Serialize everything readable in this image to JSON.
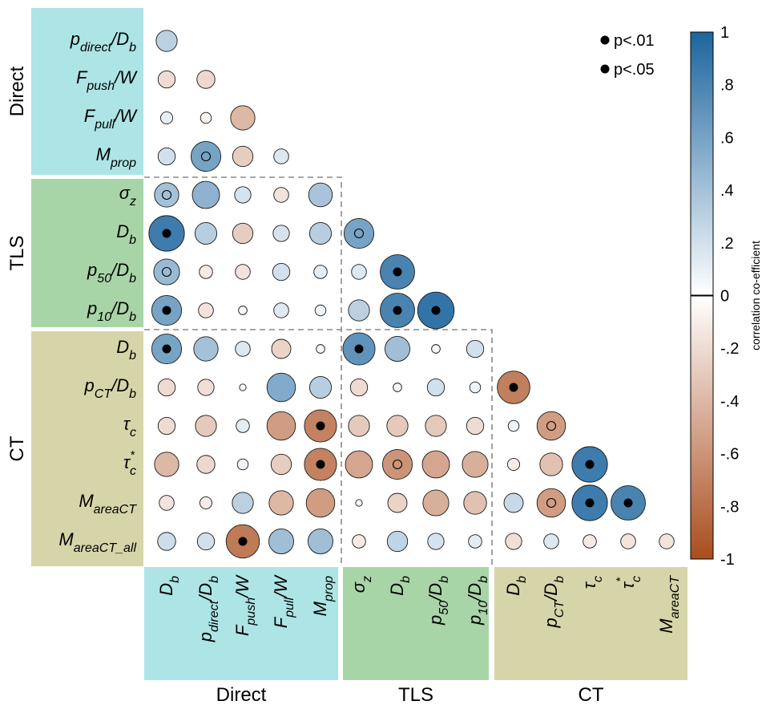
{
  "chart_data": {
    "type": "heatmap",
    "title": "",
    "matrix_style": "lower-triangle circle correlation plot",
    "colorbar": {
      "label": "correlation co-efficient",
      "range": [
        -1,
        1
      ],
      "tick_labels": [
        "1",
        ".8",
        ".6",
        ".4",
        ".2",
        "0",
        "-.2",
        "-.4",
        "-.6",
        "-.8",
        "-1"
      ],
      "tick_values": [
        1,
        0.8,
        0.6,
        0.4,
        0.2,
        0,
        -0.2,
        -0.4,
        -0.6,
        -0.8,
        -1
      ],
      "positive_color": "#1c659e",
      "negative_color": "#a94d1e",
      "zero_color": "#ffffff"
    },
    "legend": {
      "position": "top-right",
      "items": [
        {
          "label": "p<.01",
          "marker": "filled-dot"
        },
        {
          "label": "p<.05",
          "marker": "filled-dot"
        }
      ]
    },
    "groups": [
      {
        "name": "Direct",
        "color": "#ade4e6"
      },
      {
        "name": "TLS",
        "color": "#a8d5a8"
      },
      {
        "name": "CT",
        "color": "#d6d5a9"
      }
    ],
    "row_labels": [
      {
        "base": "p",
        "sub": "direct",
        "tail": "/D",
        "tail_sub": "b",
        "group": "Direct"
      },
      {
        "base": "F",
        "sub": "push",
        "tail": "/W",
        "tail_sub": "",
        "group": "Direct"
      },
      {
        "base": "F",
        "sub": "pull",
        "tail": "/W",
        "tail_sub": "",
        "group": "Direct"
      },
      {
        "base": "M",
        "sub": "prop",
        "tail": "",
        "tail_sub": "",
        "group": "Direct"
      },
      {
        "base": "σ",
        "sub": "z",
        "tail": "",
        "tail_sub": "",
        "group": "TLS"
      },
      {
        "base": "D",
        "sub": "b",
        "tail": "",
        "tail_sub": "",
        "group": "TLS"
      },
      {
        "base": "p",
        "sub": "50",
        "tail": "/D",
        "tail_sub": "b",
        "group": "TLS"
      },
      {
        "base": "p",
        "sub": "10",
        "tail": "/D",
        "tail_sub": "b",
        "group": "TLS"
      },
      {
        "base": "D",
        "sub": "b",
        "tail": "",
        "tail_sub": "",
        "group": "CT"
      },
      {
        "base": "p",
        "sub": "CT",
        "tail": "/D",
        "tail_sub": "b",
        "group": "CT"
      },
      {
        "base": "τ",
        "sub": "c",
        "tail": "",
        "tail_sub": "",
        "group": "CT"
      },
      {
        "base": "τ",
        "sub": "c",
        "sup": "*",
        "tail": "",
        "tail_sub": "",
        "group": "CT"
      },
      {
        "base": "M",
        "sub": "areaCT",
        "tail": "",
        "tail_sub": "",
        "group": "CT"
      },
      {
        "base": "M",
        "sub": "areaCT_all",
        "tail": "",
        "tail_sub": "",
        "group": "CT"
      }
    ],
    "col_labels": [
      {
        "base": "D",
        "sub": "b",
        "tail": "",
        "tail_sub": "",
        "group": "Direct"
      },
      {
        "base": "p",
        "sub": "direct",
        "tail": "/D",
        "tail_sub": "b",
        "group": "Direct"
      },
      {
        "base": "F",
        "sub": "push",
        "tail": "/W",
        "tail_sub": "",
        "group": "Direct"
      },
      {
        "base": "F",
        "sub": "pull",
        "tail": "/W",
        "tail_sub": "",
        "group": "Direct"
      },
      {
        "base": "M",
        "sub": "prop",
        "tail": "",
        "tail_sub": "",
        "group": "Direct"
      },
      {
        "base": "σ",
        "sub": "z",
        "tail": "",
        "tail_sub": "",
        "group": "TLS"
      },
      {
        "base": "D",
        "sub": "b",
        "tail": "",
        "tail_sub": "",
        "group": "TLS"
      },
      {
        "base": "p",
        "sub": "50",
        "tail": "/D",
        "tail_sub": "b",
        "group": "TLS"
      },
      {
        "base": "p",
        "sub": "10",
        "tail": "/D",
        "tail_sub": "b",
        "group": "TLS"
      },
      {
        "base": "D",
        "sub": "b",
        "tail": "",
        "tail_sub": "",
        "group": "CT"
      },
      {
        "base": "p",
        "sub": "CT",
        "tail": "/D",
        "tail_sub": "b",
        "group": "CT"
      },
      {
        "base": "τ",
        "sub": "c",
        "tail": "",
        "tail_sub": "",
        "group": "CT"
      },
      {
        "base": "τ",
        "sub": "c",
        "sup": "*",
        "tail": "",
        "tail_sub": "",
        "group": "CT"
      },
      {
        "base": "M",
        "sub": "areaCT",
        "tail": "",
        "tail_sub": "",
        "group": "CT"
      }
    ],
    "values": [
      [
        0.3
      ],
      [
        -0.2,
        -0.22
      ],
      [
        0.1,
        -0.08,
        -0.4
      ],
      [
        0.2,
        0.6,
        -0.28,
        0.15
      ],
      [
        0.4,
        0.5,
        0.18,
        -0.15,
        0.38
      ],
      [
        0.85,
        0.32,
        -0.28,
        0.18,
        0.32,
        0.6
      ],
      [
        0.45,
        -0.12,
        -0.15,
        0.2,
        0.12,
        0.15,
        0.8
      ],
      [
        0.6,
        -0.15,
        0.05,
        0.15,
        0.08,
        0.3,
        0.8,
        0.9
      ],
      [
        0.6,
        0.4,
        0.15,
        -0.25,
        0.05,
        0.7,
        0.42,
        0.05,
        0.2
      ],
      [
        -0.2,
        -0.18,
        0.03,
        0.55,
        0.32,
        -0.2,
        0.05,
        0.2,
        0.08,
        -0.72
      ],
      [
        -0.2,
        -0.3,
        0.12,
        -0.55,
        -0.7,
        -0.3,
        -0.3,
        -0.3,
        -0.2,
        0.08,
        -0.55
      ],
      [
        -0.4,
        -0.22,
        0.08,
        -0.28,
        -0.7,
        -0.5,
        -0.6,
        -0.5,
        -0.45,
        -0.1,
        -0.35,
        0.85
      ],
      [
        -0.15,
        -0.1,
        0.3,
        -0.4,
        -0.55,
        0.03,
        -0.25,
        -0.45,
        -0.35,
        0.25,
        -0.55,
        0.85,
        0.8
      ],
      [
        0.22,
        0.2,
        -0.75,
        0.42,
        0.42,
        -0.12,
        0.28,
        0.18,
        0.12,
        -0.18,
        0.15,
        -0.12,
        -0.15,
        -0.15
      ]
    ],
    "significance": [
      [
        ""
      ],
      [
        "",
        ""
      ],
      [
        "",
        "",
        ""
      ],
      [
        "",
        "p<.05",
        "",
        ""
      ],
      [
        "p<.05",
        "",
        "",
        "",
        ""
      ],
      [
        "p<.01",
        "",
        "",
        "",
        "",
        "p<.05"
      ],
      [
        "p<.05",
        "",
        "",
        "",
        "",
        "",
        "p<.01"
      ],
      [
        "p<.01",
        "",
        "",
        "",
        "",
        "",
        "p<.01",
        "p<.01"
      ],
      [
        "p<.01",
        "",
        "",
        "",
        "",
        "p<.01",
        "",
        "",
        ""
      ],
      [
        "",
        "",
        "",
        "",
        "",
        "",
        "",
        "",
        "",
        "p<.01"
      ],
      [
        "",
        "",
        "",
        "",
        "p<.01",
        "",
        "",
        "",
        "",
        "",
        "p<.05"
      ],
      [
        "",
        "",
        "",
        "",
        "p<.01",
        "",
        "p<.05",
        "",
        "",
        "",
        "",
        "p<.01"
      ],
      [
        "",
        "",
        "",
        "",
        "",
        "",
        "",
        "",
        "",
        "",
        "p<.05",
        "p<.01",
        "p<.01"
      ],
      [
        "",
        "",
        "p<.01",
        "",
        "",
        "",
        "",
        "",
        "",
        "",
        "",
        "",
        "",
        ""
      ]
    ]
  }
}
